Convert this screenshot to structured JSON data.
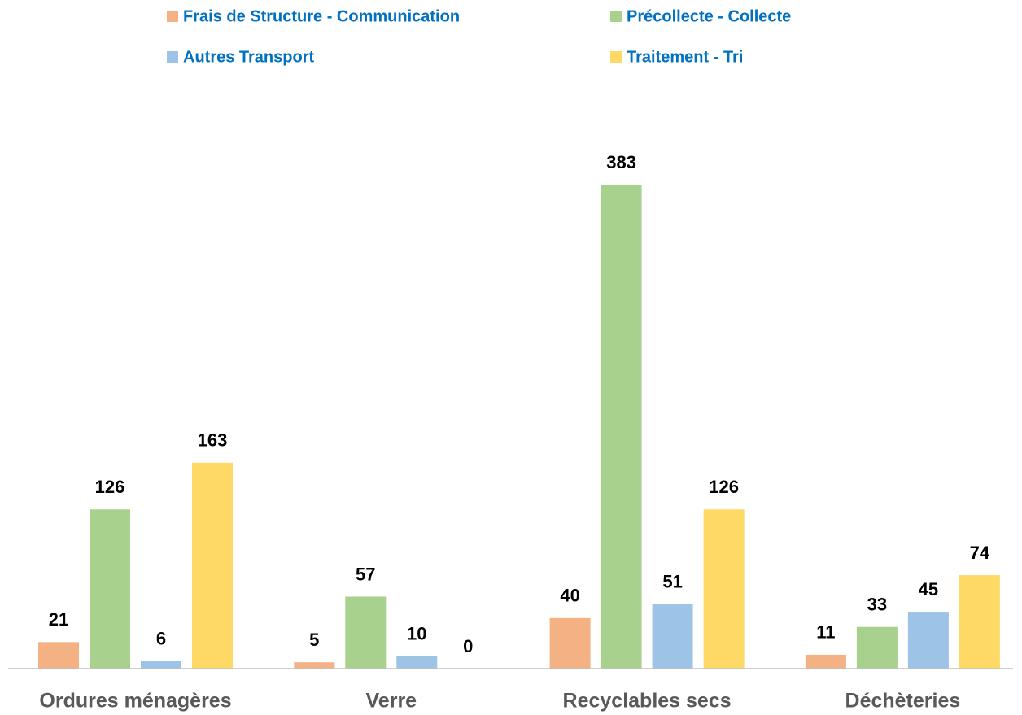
{
  "chart_data": {
    "type": "bar",
    "categories": [
      "Ordures ménagères",
      "Verre",
      "Recyclables secs",
      "Déchèteries"
    ],
    "series": [
      {
        "name": "Frais de Structure - Communication",
        "color": "#f4b183",
        "values": [
          21,
          5,
          40,
          11
        ]
      },
      {
        "name": "Précollecte - Collecte",
        "color": "#a9d18e",
        "values": [
          126,
          57,
          383,
          33
        ]
      },
      {
        "name": "Autres Transport",
        "color": "#9dc3e6",
        "values": [
          6,
          10,
          51,
          45
        ]
      },
      {
        "name": "Traitement - Tri",
        "color": "#ffd966",
        "values": [
          163,
          0,
          126,
          74
        ]
      }
    ],
    "legend": "top"
  }
}
